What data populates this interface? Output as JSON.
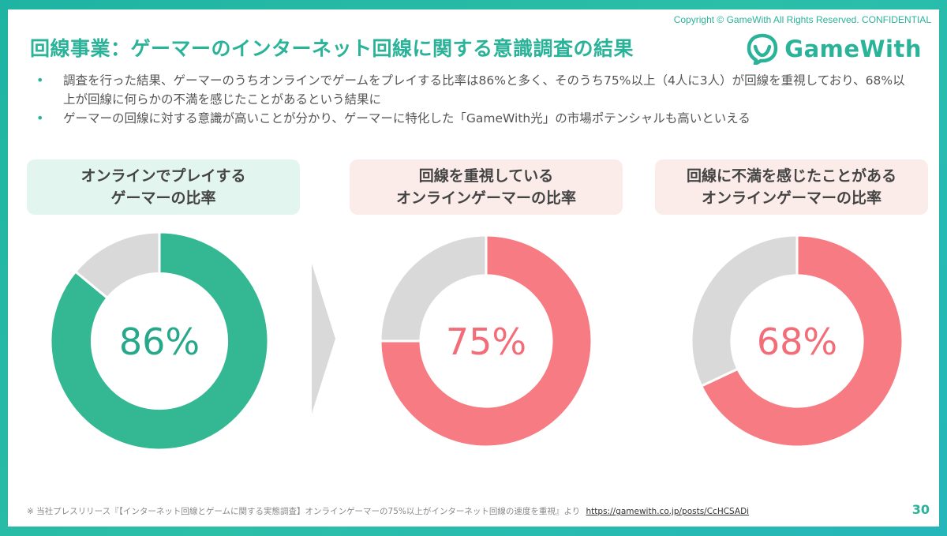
{
  "copyright": "Copyright © GameWith All Rights Reserved. CONFIDENTIAL",
  "title": "回線事業：ゲーマーのインターネット回線に関する意識調査の結果",
  "logo": {
    "text": "GameWith",
    "icon": "gamewith-logo-icon"
  },
  "bullets": [
    "調査を行った結果、ゲーマーのうちオンラインでゲームをプレイする比率は86%と多く、そのうち75%以上（4人に3人）が回線を重視しており、68%以上が回線に何らかの不満を感じたことがあるという結果に",
    "ゲーマーの回線に対する意識が高いことが分かり、ゲーマーに特化した「GameWith光」の市場ポテンシャルも高いといえる"
  ],
  "colors": {
    "green": "#33b893",
    "pink": "#f77b82",
    "gray": "#d9d9d9",
    "arrow": "#d9d9d9"
  },
  "chart_data": [
    {
      "type": "pie",
      "title_line1": "オンラインでプレイする",
      "title_line2": "ゲーマーの比率",
      "value": 86,
      "center_label": "86%",
      "remainder": 14
    },
    {
      "type": "pie",
      "title_line1": "回線を重視している",
      "title_line2": "オンラインゲーマーの比率",
      "value": 75,
      "center_label": "75%",
      "remainder": 25
    },
    {
      "type": "pie",
      "title_line1": "回線に不満を感じたことがある",
      "title_line2": "オンラインゲーマーの比率",
      "value": 68,
      "center_label": "68%",
      "remainder": 32
    }
  ],
  "source": {
    "text": "※ 当社プレスリリース『【インターネット回線とゲームに関する実態調査】オンラインゲーマーの75%以上がインターネット回線の速度を重視』より",
    "link": "https://gamewith.co.jp/posts/CcHCSADi"
  },
  "page_number": "30"
}
